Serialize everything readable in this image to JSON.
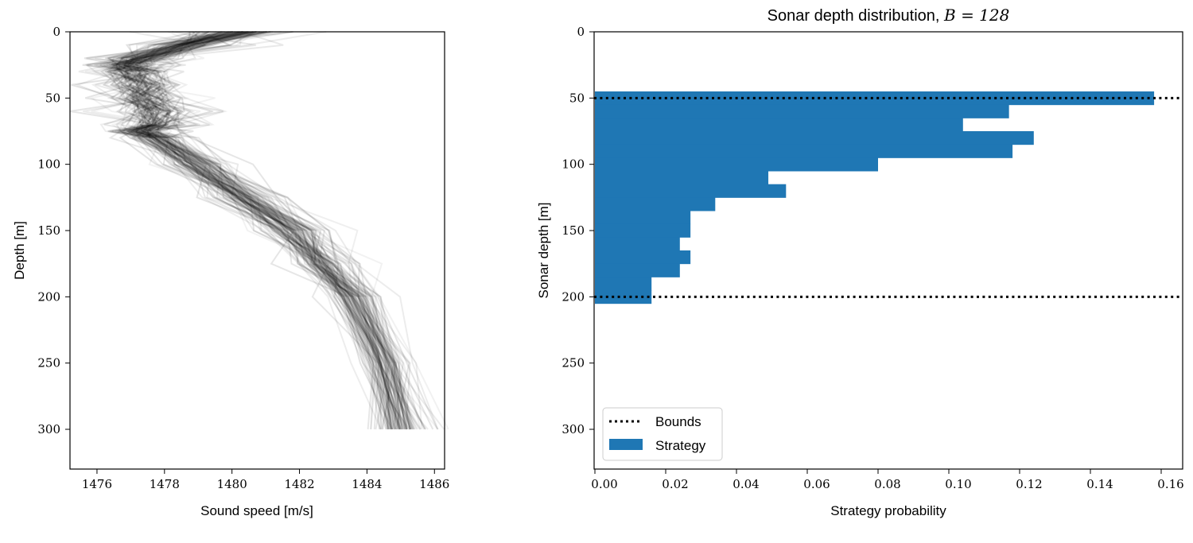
{
  "chart_data": [
    {
      "type": "line",
      "title": "",
      "xlabel": "Sound speed [m/s]",
      "ylabel": "Depth [m]",
      "xlim": [
        1475.2,
        1486.3
      ],
      "ylim": [
        330,
        0
      ],
      "xticks": [
        1476,
        1478,
        1480,
        1482,
        1484,
        1486
      ],
      "yticks": [
        0,
        50,
        100,
        150,
        200,
        250,
        300
      ],
      "grid": false,
      "series_description": "ensemble of semi-transparent sound speed profiles",
      "mean_profile": {
        "depth": [
          0,
          10,
          20,
          25,
          30,
          40,
          50,
          60,
          70,
          75,
          80,
          100,
          125,
          150,
          175,
          200,
          250,
          300
        ],
        "speed": [
          1480.2,
          1478.6,
          1477.3,
          1477.0,
          1477.1,
          1477.3,
          1477.4,
          1477.8,
          1477.7,
          1477.3,
          1477.8,
          1479.0,
          1480.4,
          1481.8,
          1482.7,
          1483.6,
          1484.5,
          1485.0
        ]
      },
      "spread": [
        1.2,
        1.0,
        0.8,
        0.7,
        0.7,
        0.8,
        0.9,
        0.8,
        0.6,
        0.5,
        0.5,
        0.6,
        0.6,
        0.6,
        0.5,
        0.4,
        0.4,
        0.5
      ],
      "profile_count": 120,
      "color": "#000000"
    },
    {
      "type": "bar",
      "orientation": "horizontal",
      "title_text": "Sonar depth distribution, ",
      "title_math": "B = 128",
      "xlabel": "Strategy probability",
      "ylabel": "Sonar depth [m]",
      "xlim": [
        0,
        0.166
      ],
      "ylim": [
        330,
        0
      ],
      "xticks": [
        "0.00",
        "0.02",
        "0.04",
        "0.06",
        "0.08",
        "0.10",
        "0.12",
        "0.14",
        "0.16"
      ],
      "yticks": [
        0,
        50,
        100,
        150,
        200,
        250,
        300
      ],
      "grid": false,
      "bin_width": 10,
      "bin_starts": [
        45,
        55,
        65,
        75,
        85,
        95,
        105,
        115,
        125,
        135,
        145,
        155,
        165,
        175,
        185,
        195
      ],
      "values": [
        0.158,
        0.117,
        0.104,
        0.124,
        0.118,
        0.08,
        0.049,
        0.054,
        0.034,
        0.027,
        0.027,
        0.024,
        0.027,
        0.024,
        0.016,
        0.016
      ],
      "bounds": [
        50,
        200
      ],
      "bar_color": "#1f77b4",
      "bound_color": "#000000",
      "legend": {
        "position": "lower-left",
        "entries": [
          "Bounds",
          "Strategy"
        ]
      }
    }
  ]
}
